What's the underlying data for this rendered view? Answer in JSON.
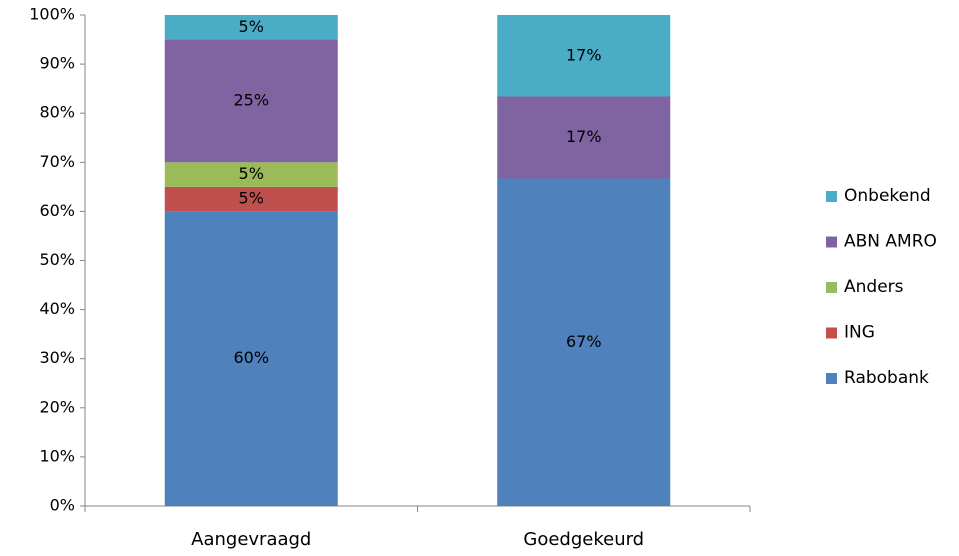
{
  "chart_data": {
    "type": "stacked_bar",
    "categories": [
      "Aangevraagd",
      "Goedgekeurd"
    ],
    "series": [
      {
        "name": "Rabobank",
        "color": "#4f81bd",
        "values": [
          60,
          66.7
        ],
        "value_labels": [
          "60%",
          "67%"
        ]
      },
      {
        "name": "ING",
        "color": "#c0504d",
        "values": [
          5,
          null
        ],
        "value_labels": [
          "5%",
          null
        ]
      },
      {
        "name": "Anders",
        "color": "#9bbb59",
        "values": [
          5,
          null
        ],
        "value_labels": [
          "5%",
          null
        ]
      },
      {
        "name": "ABN AMRO",
        "color": "#8064a2",
        "values": [
          25,
          16.7
        ],
        "value_labels": [
          "25%",
          "17%"
        ]
      },
      {
        "name": "Onbekend",
        "color": "#4bacc6",
        "values": [
          5,
          16.6
        ],
        "value_labels": [
          "5%",
          "17%"
        ]
      }
    ],
    "ylim": [
      0,
      100
    ],
    "yticks": [
      {
        "value": 0,
        "label": "0%"
      },
      {
        "value": 10,
        "label": "10%"
      },
      {
        "value": 20,
        "label": "20%"
      },
      {
        "value": 30,
        "label": "30%"
      },
      {
        "value": 40,
        "label": "40%"
      },
      {
        "value": 50,
        "label": "50%"
      },
      {
        "value": 60,
        "label": "60%"
      },
      {
        "value": 70,
        "label": "70%"
      },
      {
        "value": 80,
        "label": "80%"
      },
      {
        "value": 90,
        "label": "90%"
      },
      {
        "value": 100,
        "label": "100%"
      }
    ],
    "legend": "right"
  }
}
